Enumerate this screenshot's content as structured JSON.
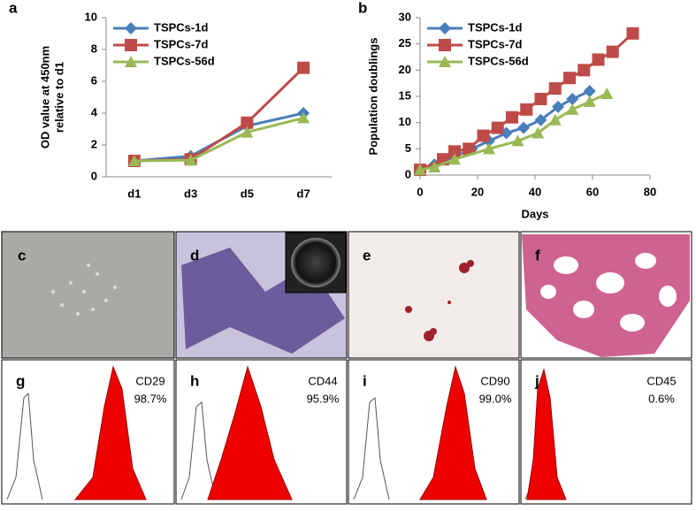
{
  "chart_data": [
    {
      "type": "line",
      "panel_label": "a",
      "ylabel": [
        "OD value at 450nm",
        "relative to d1"
      ],
      "categories": [
        "d1",
        "d3",
        "d5",
        "d7"
      ],
      "ylim": [
        0,
        10
      ],
      "yticks": [
        0,
        2,
        4,
        6,
        8,
        10
      ],
      "legend": "upper left",
      "series": [
        {
          "name": "TSPCs-1d",
          "color": "#4a7ebb",
          "marker": "diamond",
          "values": [
            1,
            1.3,
            3.2,
            4.0
          ]
        },
        {
          "name": "TSPCs-7d",
          "color": "#be4b48",
          "marker": "square",
          "values": [
            1,
            1.1,
            3.4,
            6.85
          ]
        },
        {
          "name": "TSPCs-56d",
          "color": "#98b954",
          "marker": "triangle",
          "values": [
            1,
            1.05,
            2.8,
            3.7
          ]
        }
      ]
    },
    {
      "type": "line",
      "panel_label": "b",
      "xlabel": "Days",
      "ylabel": [
        "Population doublings"
      ],
      "xlim": [
        0,
        80
      ],
      "xticks": [
        0,
        20,
        40,
        60,
        80
      ],
      "ylim": [
        0,
        30
      ],
      "yticks": [
        0,
        5,
        10,
        15,
        20,
        25,
        30
      ],
      "legend": "upper left",
      "series": [
        {
          "name": "TSPCs-1d",
          "color": "#4a7ebb",
          "marker": "diamond",
          "x": [
            0,
            5,
            12,
            18,
            24,
            30,
            36,
            42,
            48,
            53,
            59
          ],
          "values": [
            1,
            2,
            3.5,
            5,
            6.5,
            8,
            9,
            10.5,
            13,
            14.5,
            16
          ]
        },
        {
          "name": "TSPCs-7d",
          "color": "#be4b48",
          "marker": "square",
          "x": [
            0,
            8,
            12,
            17,
            22,
            27,
            32,
            37,
            42,
            47,
            52,
            57,
            62,
            67,
            74
          ],
          "values": [
            1,
            3,
            4.5,
            5,
            7.5,
            9,
            11,
            12.5,
            14.5,
            16.5,
            18.5,
            20,
            22,
            23.5,
            27
          ]
        },
        {
          "name": "TSPCs-56d",
          "color": "#98b954",
          "marker": "triangle",
          "x": [
            0,
            5,
            12,
            24,
            34,
            41,
            47,
            53,
            59,
            65
          ],
          "values": [
            1,
            1.5,
            3,
            5,
            6.5,
            8,
            10.5,
            12.5,
            14,
            15.5
          ]
        }
      ]
    }
  ],
  "panels": [
    {
      "letter": "c"
    },
    {
      "letter": "d"
    },
    {
      "letter": "e"
    },
    {
      "letter": "f"
    },
    {
      "letter": "g",
      "marker": "CD29",
      "percent": "98.7%"
    },
    {
      "letter": "h",
      "marker": "CD44",
      "percent": "95.9%"
    },
    {
      "letter": "i",
      "marker": "CD90",
      "percent": "99.0%"
    },
    {
      "letter": "j",
      "marker": "CD45",
      "percent": "0.6%"
    }
  ]
}
